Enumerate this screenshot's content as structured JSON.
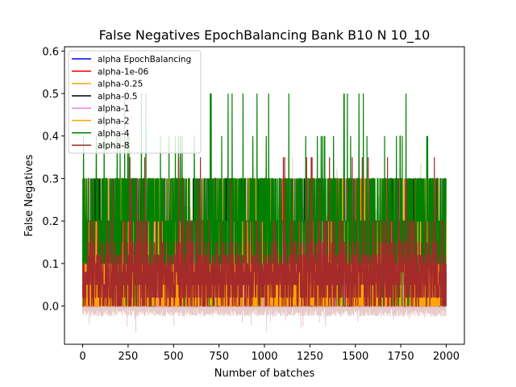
{
  "chart_data": {
    "type": "line",
    "title": "False Negatives EpochBalancing Bank B10 N 10_10",
    "xlabel": "Number of batches",
    "ylabel": "False Negatives",
    "xlim": [
      -100,
      2100
    ],
    "ylim": [
      -0.09,
      0.61
    ],
    "xticks": [
      0,
      250,
      500,
      750,
      1000,
      1250,
      1500,
      1750,
      2000
    ],
    "xtick_labels": [
      "0",
      "250",
      "500",
      "750",
      "1000",
      "1250",
      "1500",
      "1750",
      "2000"
    ],
    "yticks": [
      0.0,
      0.1,
      0.2,
      0.3,
      0.4,
      0.5,
      0.6
    ],
    "ytick_labels": [
      "0.0",
      "0.1",
      "0.2",
      "0.3",
      "0.4",
      "0.5",
      "0.6"
    ],
    "legend_position": "top-left",
    "n_points": 2000,
    "series": [
      {
        "name": "alpha EpochBalancing",
        "color": "#0000ff",
        "level_max": 0.2
      },
      {
        "name": "alpha-1e-06",
        "color": "#ff0000",
        "level_max": 0.3
      },
      {
        "name": "alpha-0.25",
        "color": "#ffa500",
        "level_max": 0.3
      },
      {
        "name": "alpha-0.5",
        "color": "#000000",
        "level_max": 0.3
      },
      {
        "name": "alpha-1",
        "color": "#ee82ee",
        "level_max": 0.3
      },
      {
        "name": "alpha-2",
        "color": "#ffa500",
        "level_max": 0.3
      },
      {
        "name": "alpha-4",
        "color": "#008000",
        "level_max": 0.5
      },
      {
        "name": "alpha-8",
        "color": "#a52a2a",
        "level_max": 0.2
      }
    ]
  }
}
